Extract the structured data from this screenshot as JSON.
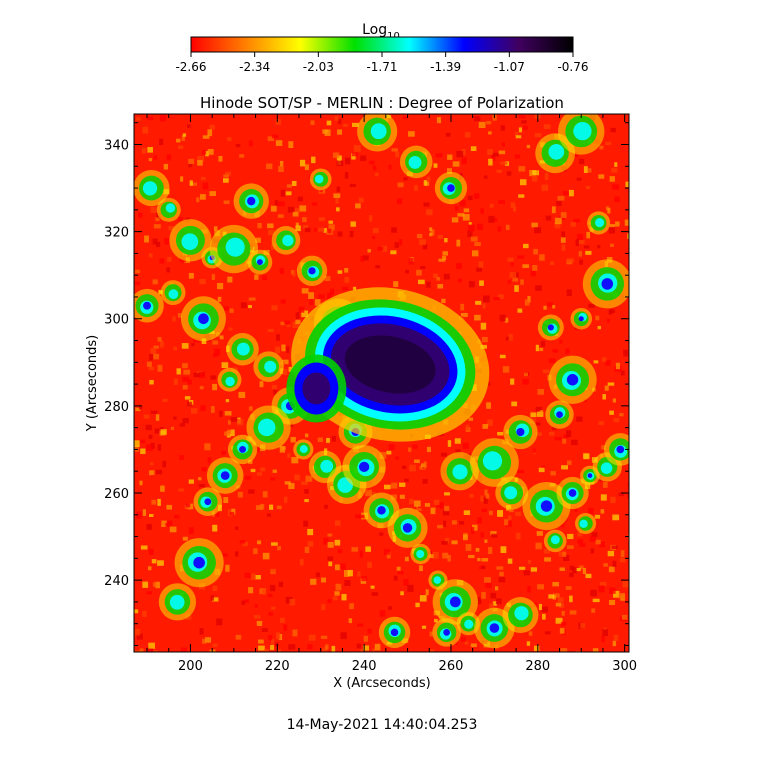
{
  "chart_data": {
    "type": "heatmap",
    "title": "Hinode SOT/SP - MERLIN : Degree of Polarization",
    "xlabel": "X (Arcseconds)",
    "ylabel": "Y (Arcseconds)",
    "xlim": [
      187,
      301
    ],
    "ylim": [
      223.5,
      347
    ],
    "xticks": [
      200,
      220,
      240,
      260,
      280,
      300
    ],
    "yticks": [
      240,
      260,
      280,
      300,
      320,
      340
    ],
    "colorbar": {
      "label_base": "Log",
      "label_sub": "10",
      "range": [
        -2.66,
        -0.76
      ],
      "ticks": [
        "-2.66",
        "-2.34",
        "-2.03",
        "-1.71",
        "-1.39",
        "-1.07",
        "-0.76"
      ],
      "colors": [
        "#ff0000",
        "#ff8000",
        "#ffff00",
        "#00e000",
        "#00ffff",
        "#0000ff",
        "#400060",
        "#000000"
      ]
    },
    "features": [
      {
        "name": "sunspot umbra",
        "x": 246,
        "y": 289.5,
        "level": -0.8
      },
      {
        "name": "pore",
        "x": 229,
        "y": 284,
        "level": -1.0
      }
    ],
    "timestamp": "14-May-2021 14:40:04.253"
  }
}
